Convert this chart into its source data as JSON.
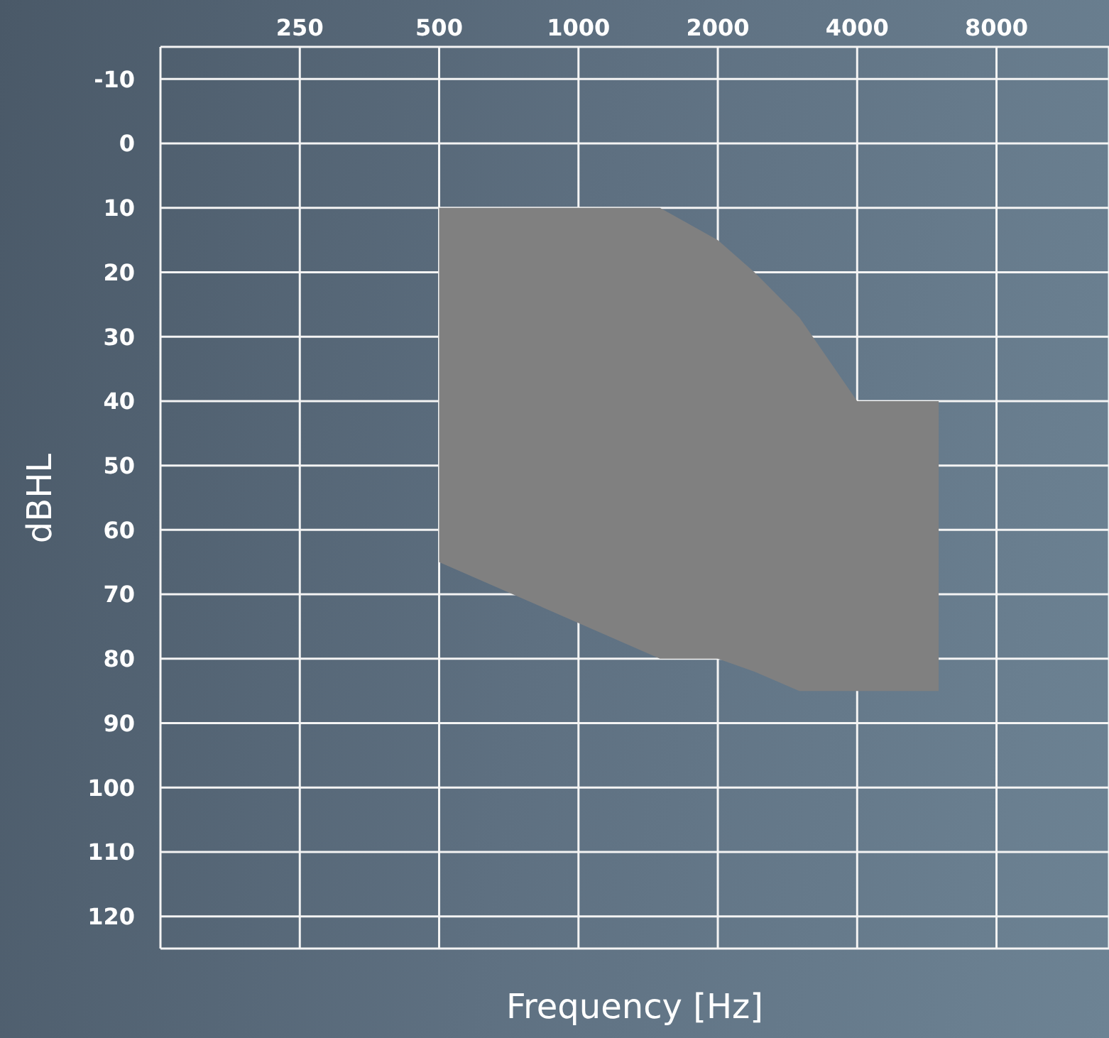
{
  "chart_data": {
    "type": "area",
    "xlabel": "Frequency [Hz]",
    "ylabel": "dBHL",
    "log": "x",
    "xlim": [
      125,
      14000
    ],
    "xticks": [
      250,
      500,
      1000,
      2000,
      4000,
      8000
    ],
    "ylim": [
      125,
      -15
    ],
    "yticks": [
      -10,
      0,
      10,
      20,
      30,
      40,
      50,
      60,
      70,
      80,
      90,
      100,
      110,
      120
    ],
    "grid": true,
    "series": [
      {
        "color": "#808080",
        "x": [
          500,
          1500,
          2000,
          2400,
          3000,
          4000,
          6000
        ],
        "lower": [
          10,
          10,
          15,
          20,
          27,
          40,
          40
        ],
        "upper": [
          65,
          80,
          80,
          82,
          85,
          85,
          85
        ],
        "values": [
          null,
          null,
          null,
          null,
          null,
          null,
          null
        ]
      }
    ]
  }
}
